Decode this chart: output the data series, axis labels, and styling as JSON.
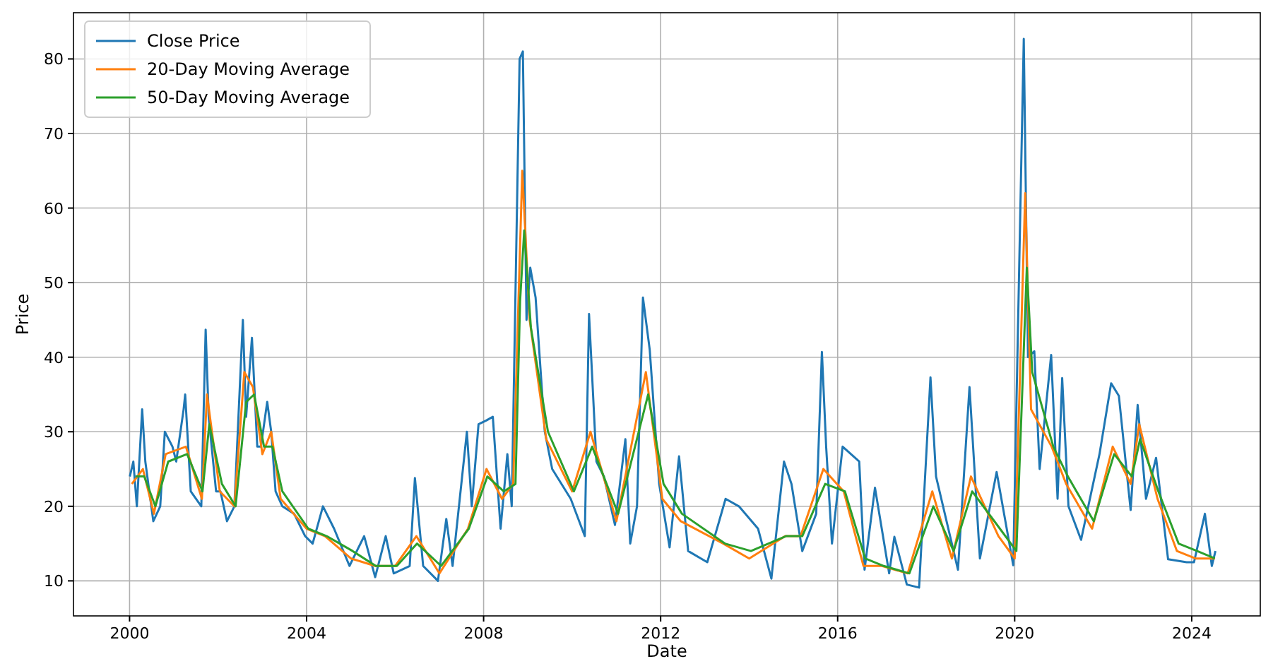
{
  "chart_data": {
    "type": "line",
    "xlabel": "Date",
    "ylabel": "Price",
    "xlim": [
      "1998-09-25",
      "2025-07-20"
    ],
    "xticks": [
      "2000",
      "2004",
      "2008",
      "2012",
      "2016",
      "2020",
      "2024"
    ],
    "ylim": [
      5.3,
      86.2
    ],
    "yticks": [
      10,
      20,
      30,
      40,
      50,
      60,
      70,
      80
    ],
    "grid": true,
    "legend": "top left",
    "series": [
      {
        "name": "Close Price",
        "color": "#1f77b4",
        "x": [
          "2000-01-03",
          "2000-02-01",
          "2000-03-01",
          "2000-04-14",
          "2000-05-10",
          "2000-07-15",
          "2000-09-10",
          "2000-10-18",
          "2000-12-20",
          "2001-01-20",
          "2001-03-22",
          "2001-04-04",
          "2001-05-20",
          "2001-08-15",
          "2001-09-20",
          "2001-10-15",
          "2001-12-15",
          "2002-01-20",
          "2002-03-15",
          "2002-05-15",
          "2002-07-24",
          "2002-08-20",
          "2002-09-25",
          "2002-10-07",
          "2002-11-20",
          "2002-12-20",
          "2003-02-10",
          "2003-03-15",
          "2003-04-20",
          "2003-06-15",
          "2003-09-20",
          "2003-12-20",
          "2004-02-20",
          "2004-05-15",
          "2004-08-15",
          "2004-12-20",
          "2005-04-20",
          "2005-07-20",
          "2005-10-15",
          "2005-12-20",
          "2006-05-01",
          "2006-06-13",
          "2006-08-20",
          "2006-12-20",
          "2007-02-27",
          "2007-04-20",
          "2007-08-16",
          "2007-09-25",
          "2007-11-20",
          "2008-01-22",
          "2008-03-17",
          "2008-05-20",
          "2008-07-15",
          "2008-08-20",
          "2008-10-24",
          "2008-11-20",
          "2008-12-20",
          "2009-01-20",
          "2009-03-05",
          "2009-05-20",
          "2009-07-20",
          "2009-12-20",
          "2010-04-15",
          "2010-05-20",
          "2010-07-20",
          "2010-09-20",
          "2010-12-20",
          "2011-03-16",
          "2011-04-25",
          "2011-06-20",
          "2011-08-08",
          "2011-10-03",
          "2011-12-20",
          "2012-03-15",
          "2012-06-01",
          "2012-08-15",
          "2013-01-20",
          "2013-06-20",
          "2013-10-08",
          "2014-03-15",
          "2014-07-03",
          "2014-10-15",
          "2014-12-16",
          "2015-03-15",
          "2015-07-08",
          "2015-08-24",
          "2015-09-28",
          "2015-11-15",
          "2016-02-11",
          "2016-06-27",
          "2016-08-10",
          "2016-11-04",
          "2017-03-01",
          "2017-04-13",
          "2017-07-25",
          "2017-11-03",
          "2018-02-05",
          "2018-03-23",
          "2018-09-20",
          "2018-12-24",
          "2019-03-20",
          "2019-08-05",
          "2019-12-20",
          "2020-03-16",
          "2020-04-20",
          "2020-06-11",
          "2020-07-25",
          "2020-10-28",
          "2020-12-20",
          "2021-01-27",
          "2021-03-20",
          "2021-07-02",
          "2021-12-01",
          "2022-03-07",
          "2022-05-10",
          "2022-08-15",
          "2022-10-12",
          "2022-12-20",
          "2023-03-13",
          "2023-06-20",
          "2023-11-20",
          "2024-01-20",
          "2024-04-19",
          "2024-06-15",
          "2024-07-15"
        ],
        "values": [
          24,
          26,
          20,
          33,
          26,
          18,
          20,
          30,
          28,
          26,
          33,
          35,
          22,
          20,
          43.7,
          32,
          22,
          22,
          18,
          20,
          45,
          32,
          40,
          42.6,
          28,
          28,
          34,
          30,
          22,
          20,
          19,
          16,
          15,
          20,
          17,
          12,
          16,
          10.5,
          16,
          11,
          12,
          23.8,
          12,
          10,
          18.3,
          12,
          30,
          20,
          31,
          31.5,
          32,
          17,
          27,
          20,
          80,
          81,
          45,
          52,
          48,
          30,
          25,
          21,
          16,
          45.8,
          26,
          24,
          17.5,
          29,
          15,
          20,
          48,
          41,
          23,
          14.5,
          26.7,
          14,
          12.5,
          21,
          20,
          17,
          10.3,
          26,
          23,
          14,
          19,
          40.7,
          28,
          15,
          28,
          26,
          11.5,
          22.5,
          11,
          15.9,
          9.5,
          9.1,
          37.3,
          24,
          11.5,
          36,
          13,
          24.6,
          12.1,
          82.7,
          40,
          40.8,
          25,
          40.3,
          21,
          37.2,
          20,
          15.5,
          27,
          36.5,
          34.8,
          19.5,
          33.6,
          21,
          26.5,
          12.9,
          12.5,
          12.5,
          19,
          12,
          14
        ]
      },
      {
        "name": "20-Day Moving Average",
        "color": "#ff7f0e",
        "x": [
          "2000-01-20",
          "2000-04-20",
          "2000-07-20",
          "2000-10-25",
          "2001-04-10",
          "2001-08-20",
          "2001-10-01",
          "2002-01-15",
          "2002-05-15",
          "2002-08-05",
          "2002-10-15",
          "2003-01-01",
          "2003-03-15",
          "2003-06-01",
          "2004-01-01",
          "2004-06-01",
          "2005-01-01",
          "2005-07-20",
          "2006-01-01",
          "2006-06-25",
          "2007-01-01",
          "2007-08-25",
          "2008-01-25",
          "2008-06-01",
          "2008-09-01",
          "2008-11-15",
          "2009-01-15",
          "2009-06-01",
          "2010-01-01",
          "2010-06-01",
          "2011-01-01",
          "2011-09-01",
          "2012-01-15",
          "2012-06-15",
          "2013-06-01",
          "2014-01-01",
          "2014-10-25",
          "2015-03-01",
          "2015-09-05",
          "2016-02-20",
          "2016-08-01",
          "2017-01-01",
          "2017-08-01",
          "2018-02-20",
          "2018-08-01",
          "2019-01-05",
          "2019-08-20",
          "2020-01-01",
          "2020-03-28",
          "2020-05-15",
          "2020-11-01",
          "2021-03-01",
          "2021-10-01",
          "2022-03-20",
          "2022-08-15",
          "2022-10-25",
          "2023-03-25",
          "2023-09-01",
          "2024-02-01",
          "2024-07-10"
        ],
        "values": [
          23,
          25,
          19,
          27,
          28,
          21,
          35,
          22,
          20,
          38,
          36,
          27,
          30,
          21,
          17,
          16,
          13,
          12,
          12,
          16,
          11,
          17,
          25,
          21,
          23,
          65,
          45,
          29,
          22,
          30,
          18,
          38,
          21,
          18,
          15,
          13,
          16,
          16,
          25,
          22,
          12,
          12,
          11,
          22,
          13,
          24,
          16,
          13,
          62,
          33,
          28,
          23,
          17,
          28,
          23,
          31,
          21,
          14,
          13,
          13
        ]
      },
      {
        "name": "50-Day Moving Average",
        "color": "#2ca02c",
        "x": [
          "2000-02-20",
          "2000-05-01",
          "2000-08-01",
          "2000-11-15",
          "2001-04-20",
          "2001-08-25",
          "2001-10-20",
          "2002-02-01",
          "2002-05-25",
          "2002-08-20",
          "2002-10-25",
          "2003-01-15",
          "2003-03-25",
          "2003-06-15",
          "2004-01-15",
          "2004-06-15",
          "2005-01-15",
          "2005-07-25",
          "2006-01-15",
          "2006-07-01",
          "2007-01-15",
          "2007-09-01",
          "2008-02-01",
          "2008-06-15",
          "2008-09-20",
          "2008-10-28",
          "2008-12-01",
          "2009-01-25",
          "2009-06-15",
          "2010-01-15",
          "2010-06-15",
          "2011-01-15",
          "2011-09-20",
          "2012-01-25",
          "2012-06-25",
          "2013-06-15",
          "2014-01-15",
          "2014-11-01",
          "2015-03-15",
          "2015-09-20",
          "2016-03-01",
          "2016-08-15",
          "2017-01-15",
          "2017-08-15",
          "2018-03-01",
          "2018-08-15",
          "2019-01-15",
          "2019-09-01",
          "2020-01-15",
          "2020-04-10",
          "2020-05-25",
          "2020-11-15",
          "2021-03-15",
          "2021-10-15",
          "2022-04-01",
          "2022-08-25",
          "2022-11-01",
          "2023-04-01",
          "2023-09-15",
          "2024-02-15",
          "2024-07-10"
        ],
        "values": [
          24,
          24,
          20,
          26,
          27,
          22,
          31,
          23,
          20,
          34,
          35,
          28,
          28,
          22,
          17,
          16,
          14,
          12,
          12,
          15,
          12,
          17,
          24,
          22,
          23,
          47.5,
          57,
          44,
          30,
          22,
          28,
          19,
          35,
          23,
          19,
          15,
          14,
          16,
          16,
          23,
          22,
          13,
          12,
          11,
          20,
          14,
          22,
          17,
          14,
          52,
          38,
          28,
          24,
          18,
          27,
          24,
          29,
          22,
          15,
          14,
          13
        ]
      }
    ]
  }
}
